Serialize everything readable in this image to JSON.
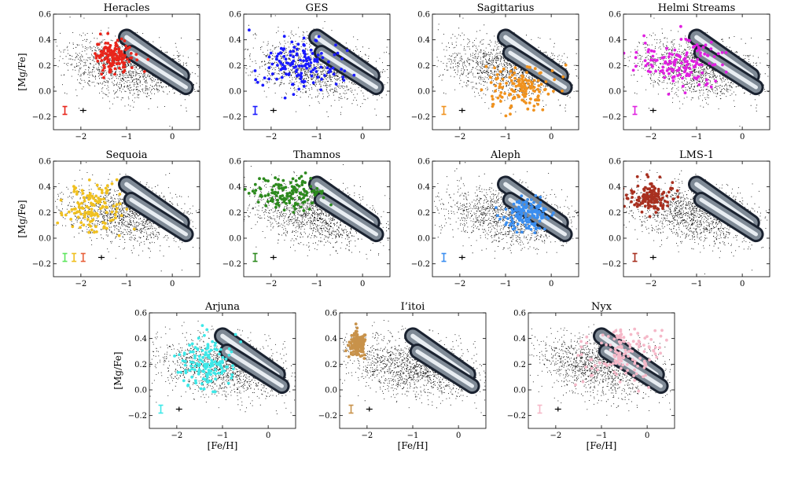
{
  "figure": {
    "x_axis_label": "[Fe/H]",
    "y_axis_label": "[Mg/Fe]"
  },
  "chart_data": {
    "type": "scatter",
    "xlim": [
      -2.6,
      0.6
    ],
    "ylim": [
      -0.3,
      0.6
    ],
    "x_ticks": [
      -2,
      -1,
      0
    ],
    "x_tick_labels": [
      "−2",
      "−1",
      "0"
    ],
    "y_ticks": [
      -0.2,
      0.0,
      0.2,
      0.4,
      0.6
    ],
    "y_tick_labels": [
      "−0.2",
      "0.0",
      "0.2",
      "0.4",
      "0.6"
    ],
    "grid": false,
    "background": {
      "halo_field_color": "#000000",
      "thin_disk_sequence": {
        "from": [
          -0.9,
          0.3
        ],
        "to": [
          0.3,
          0.03
        ]
      },
      "thick_disk_sequence": {
        "from": [
          -1.0,
          0.42
        ],
        "to": [
          0.2,
          0.12
        ]
      }
    },
    "panels": [
      {
        "title": "Heracles",
        "color": "#e8251b",
        "x_center": -1.3,
        "y_center": 0.27,
        "x_spread": 0.22,
        "y_spread": 0.06,
        "errorbar_x": [
          -2.35
        ],
        "errorbar_colors": [
          "#e8251b"
        ]
      },
      {
        "title": "GES",
        "color": "#1a1aff",
        "x_center": -1.3,
        "y_center": 0.2,
        "x_spread": 0.45,
        "y_spread": 0.1,
        "errorbar_x": [
          -2.35
        ],
        "errorbar_colors": [
          "#1a1aff"
        ]
      },
      {
        "title": "Sagittarius",
        "color": "#f0921e",
        "x_center": -0.7,
        "y_center": 0.02,
        "x_spread": 0.35,
        "y_spread": 0.08,
        "errorbar_x": [
          -2.35
        ],
        "errorbar_colors": [
          "#f0921e"
        ]
      },
      {
        "title": "Helmi Streams",
        "color": "#e020e0",
        "x_center": -1.4,
        "y_center": 0.22,
        "x_spread": 0.45,
        "y_spread": 0.1,
        "errorbar_x": [
          -2.35
        ],
        "errorbar_colors": [
          "#e020e0"
        ]
      },
      {
        "title": "Sequoia",
        "color": "#f0c020",
        "x_center": -1.75,
        "y_center": 0.22,
        "x_spread": 0.3,
        "y_spread": 0.1,
        "errorbar_x": [
          -2.35,
          -2.15,
          -1.95
        ],
        "errorbar_colors": [
          "#5ee65e",
          "#f0c020",
          "#e8603b"
        ]
      },
      {
        "title": "Thamnos",
        "color": "#2d8a1e",
        "x_center": -1.6,
        "y_center": 0.34,
        "x_spread": 0.35,
        "y_spread": 0.06,
        "errorbar_x": [
          -2.35
        ],
        "errorbar_colors": [
          "#2d8a1e"
        ]
      },
      {
        "title": "Aleph",
        "color": "#3b8ef0",
        "x_center": -0.55,
        "y_center": 0.18,
        "x_spread": 0.25,
        "y_spread": 0.06,
        "errorbar_x": [
          -2.35
        ],
        "errorbar_colors": [
          "#3b8ef0"
        ]
      },
      {
        "title": "LMS-1",
        "color": "#a83020",
        "x_center": -2.0,
        "y_center": 0.32,
        "x_spread": 0.25,
        "y_spread": 0.06,
        "errorbar_x": [
          -2.35
        ],
        "errorbar_colors": [
          "#a83020"
        ]
      },
      {
        "title": "Arjuna",
        "color": "#3ee8e8",
        "x_center": -1.35,
        "y_center": 0.2,
        "x_spread": 0.3,
        "y_spread": 0.1,
        "errorbar_x": [
          -2.35
        ],
        "errorbar_colors": [
          "#3ee8e8"
        ]
      },
      {
        "title": "I’itoi",
        "color": "#c8924a",
        "x_center": -2.2,
        "y_center": 0.35,
        "x_spread": 0.1,
        "y_spread": 0.05,
        "errorbar_x": [
          -2.35
        ],
        "errorbar_colors": [
          "#c8924a"
        ]
      },
      {
        "title": "Nyx",
        "color": "#f5b8c8",
        "x_center": -0.5,
        "y_center": 0.28,
        "x_spread": 0.45,
        "y_spread": 0.1,
        "errorbar_x": [
          -2.35
        ],
        "errorbar_colors": [
          "#f5b8c8"
        ]
      }
    ]
  }
}
